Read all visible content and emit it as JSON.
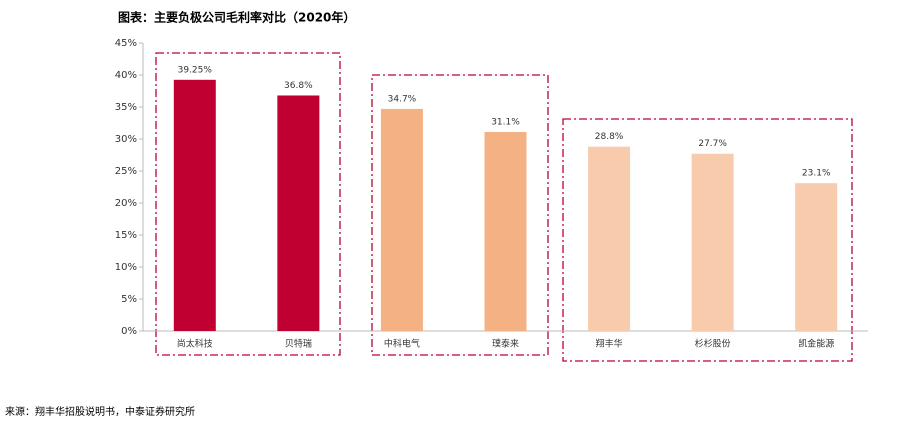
{
  "chart_data": {
    "type": "bar",
    "title": "图表：主要负极公司毛利率对比（2020年）",
    "source": "来源：翔丰华招股说明书，中泰证券研究所",
    "categories": [
      "尚太科技",
      "贝特瑞",
      "中科电气",
      "璞泰来",
      "翔丰华",
      "杉杉股份",
      "凯金能源"
    ],
    "values": [
      39.25,
      36.8,
      34.7,
      31.1,
      28.8,
      27.7,
      23.1
    ],
    "value_labels": [
      "39.25%",
      "36.8%",
      "34.7%",
      "31.1%",
      "28.8%",
      "27.7%",
      "23.1%"
    ],
    "colors": [
      "#c00030",
      "#c00030",
      "#f4b183",
      "#f4b183",
      "#f8cbad",
      "#f8cbad",
      "#f8cbad"
    ],
    "ylim": [
      0,
      45
    ],
    "yticks": [
      {
        "value": 0,
        "label": "0%"
      },
      {
        "value": 5,
        "label": "5%"
      },
      {
        "value": 10,
        "label": "10%"
      },
      {
        "value": 15,
        "label": "15%"
      },
      {
        "value": 20,
        "label": "20%"
      },
      {
        "value": 25,
        "label": "25%"
      },
      {
        "value": 30,
        "label": "30%"
      },
      {
        "value": 35,
        "label": "35%"
      },
      {
        "value": 40,
        "label": "40%"
      },
      {
        "value": 45,
        "label": "45%"
      }
    ],
    "grid": false
  }
}
